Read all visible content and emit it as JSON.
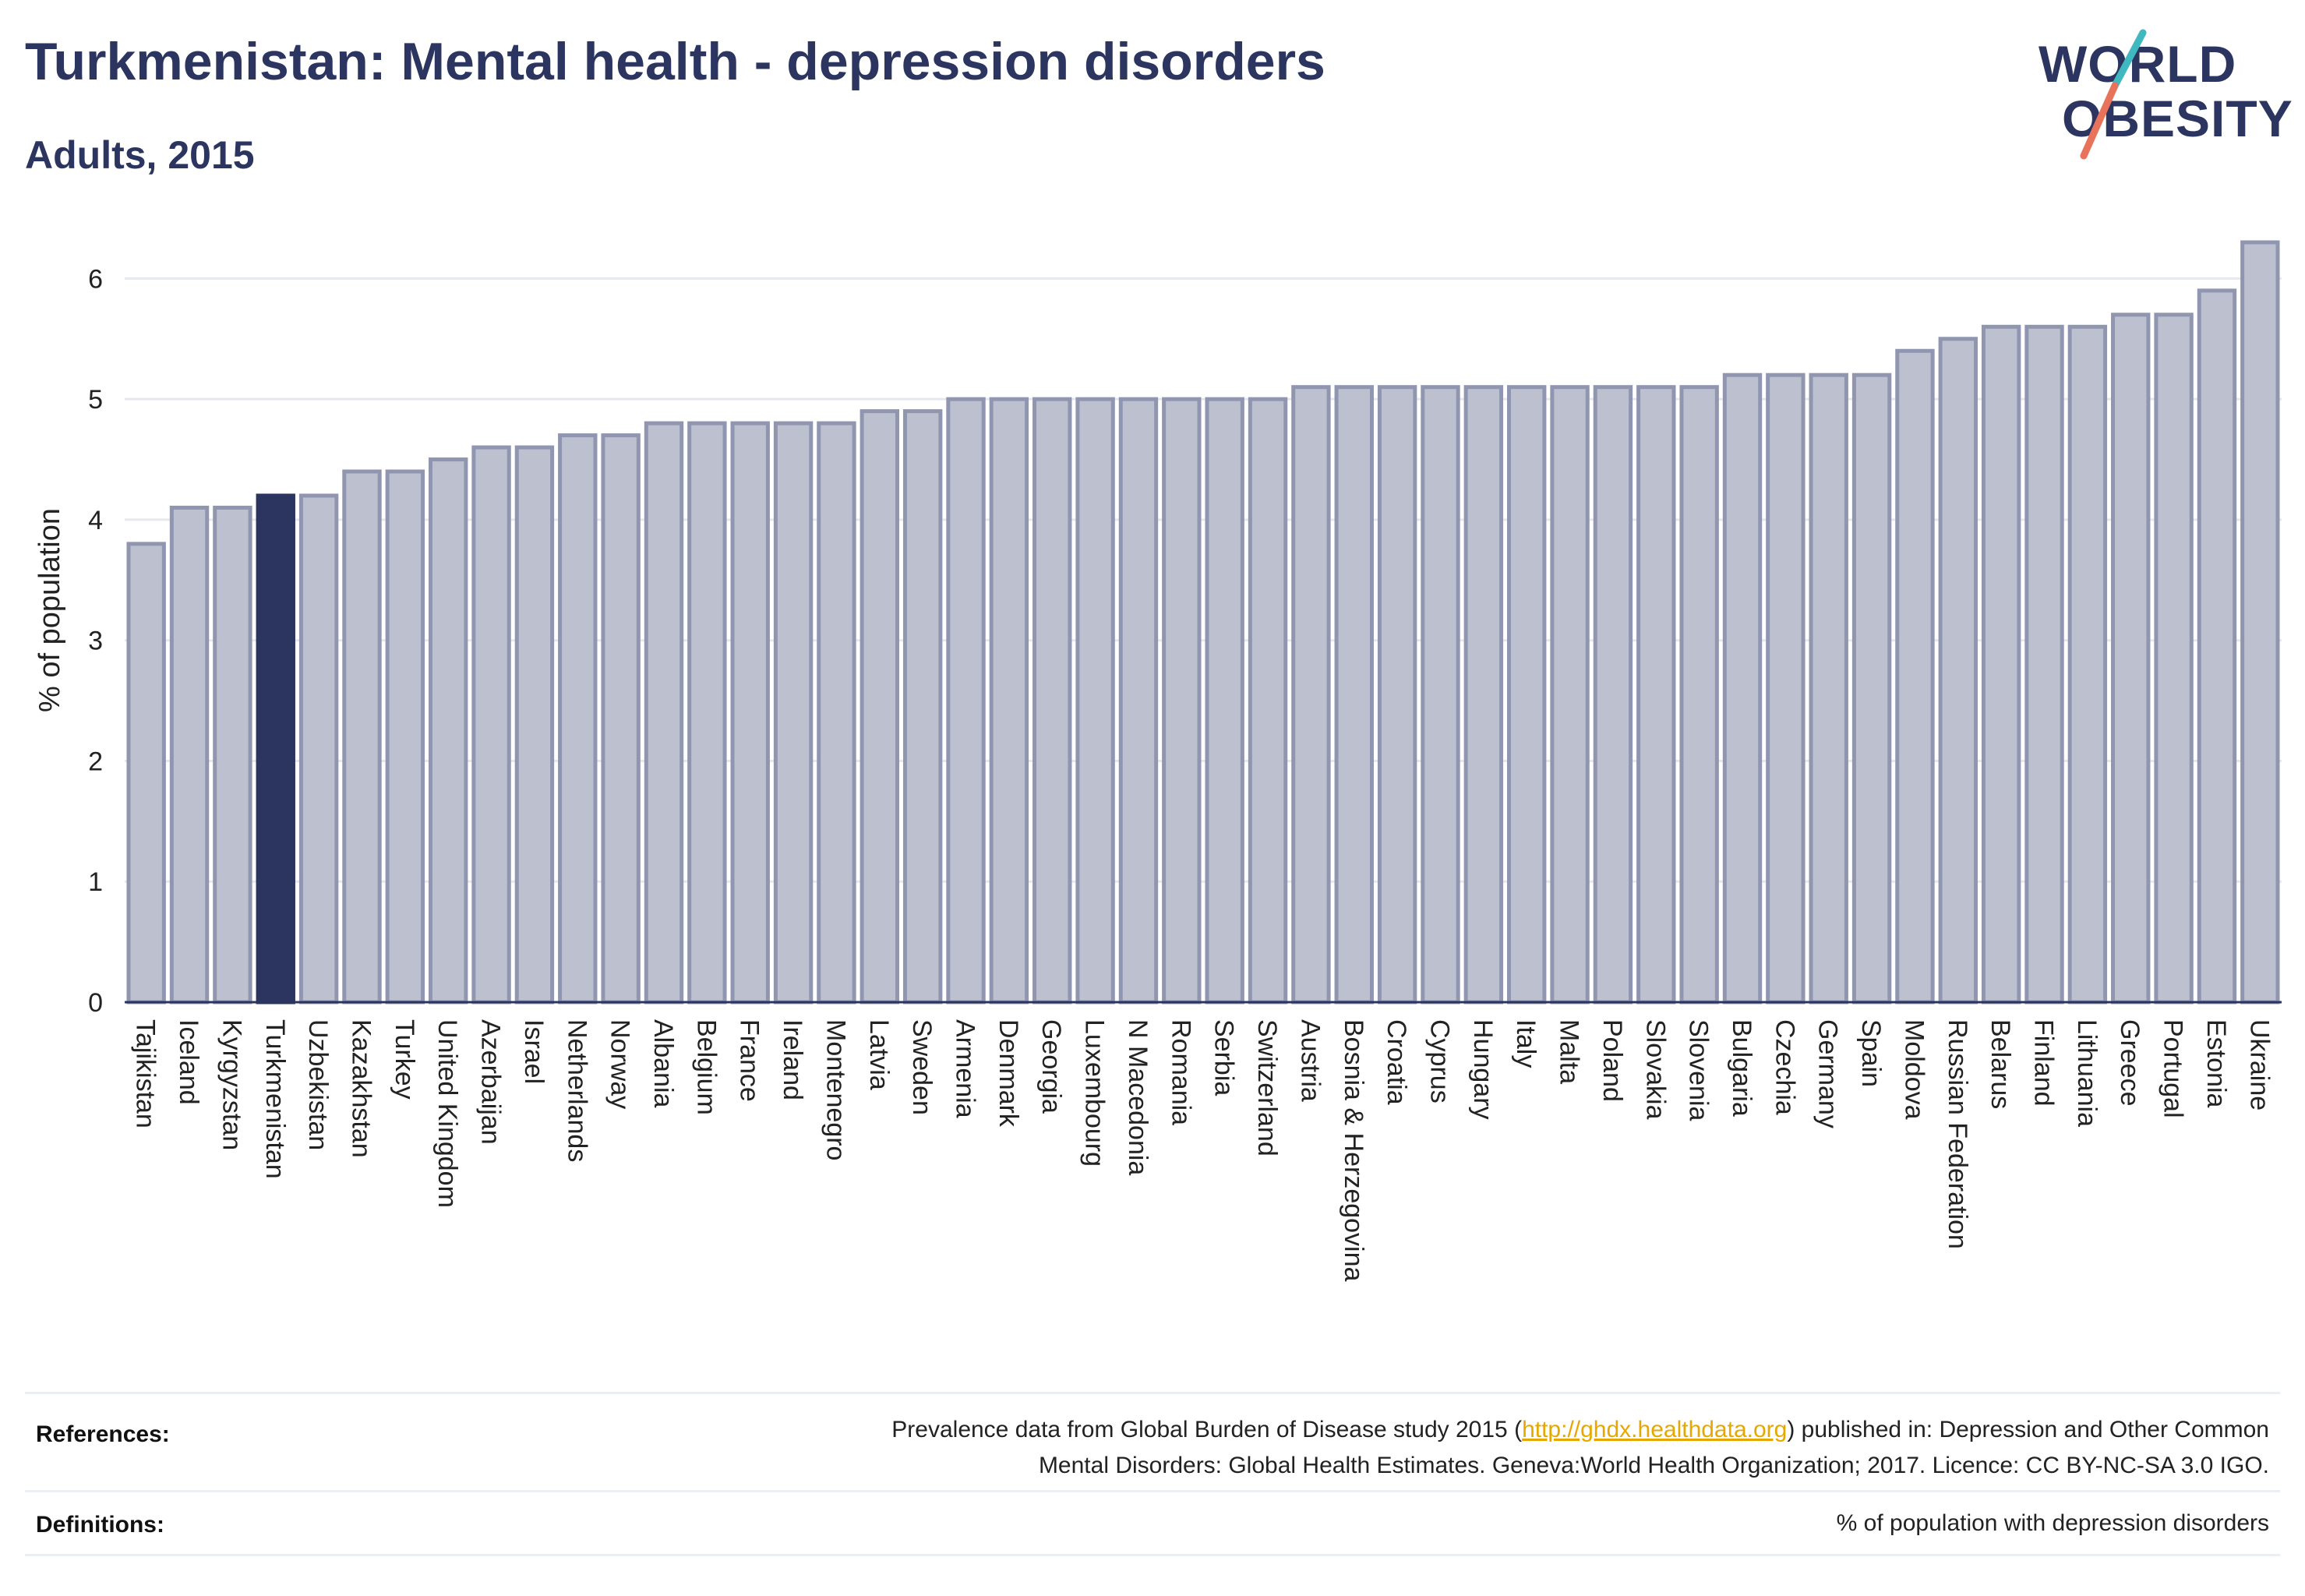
{
  "header": {
    "title": "Turkmenistan: Mental health - depression disorders",
    "subtitle": "Adults, 2015"
  },
  "logo": {
    "line1": "WORLD",
    "line2": "OBESITY",
    "accent_colors": [
      "#3fb8c0",
      "#e8735a"
    ]
  },
  "colors": {
    "highlight_bar": "#2b3560",
    "other_bar": "#bcc0cf",
    "other_bar_border": "#9096b0",
    "text": "#2b3560",
    "link": "#e6a800"
  },
  "chart_data": {
    "type": "bar",
    "title": "Turkmenistan: Mental health - depression disorders",
    "subtitle": "Adults, 2015",
    "xlabel": "",
    "ylabel": "% of population",
    "ylim": [
      0,
      6.5
    ],
    "yticks": [
      0,
      1,
      2,
      3,
      4,
      5,
      6
    ],
    "grid": true,
    "highlight": "Turkmenistan",
    "categories": [
      "Tajikistan",
      "Iceland",
      "Kyrgyzstan",
      "Turkmenistan",
      "Uzbekistan",
      "Kazakhstan",
      "Turkey",
      "United Kingdom",
      "Azerbaijan",
      "Israel",
      "Netherlands",
      "Norway",
      "Albania",
      "Belgium",
      "France",
      "Ireland",
      "Montenegro",
      "Latvia",
      "Sweden",
      "Armenia",
      "Denmark",
      "Georgia",
      "Luxembourg",
      "N Macedonia",
      "Romania",
      "Serbia",
      "Switzerland",
      "Austria",
      "Bosnia & Herzegovina",
      "Croatia",
      "Cyprus",
      "Hungary",
      "Italy",
      "Malta",
      "Poland",
      "Slovakia",
      "Slovenia",
      "Bulgaria",
      "Czechia",
      "Germany",
      "Spain",
      "Moldova",
      "Russian Federation",
      "Belarus",
      "Finland",
      "Lithuania",
      "Greece",
      "Portugal",
      "Estonia",
      "Ukraine"
    ],
    "values": [
      3.8,
      4.1,
      4.1,
      4.2,
      4.2,
      4.4,
      4.4,
      4.5,
      4.6,
      4.6,
      4.7,
      4.7,
      4.8,
      4.8,
      4.8,
      4.8,
      4.8,
      4.9,
      4.9,
      5.0,
      5.0,
      5.0,
      5.0,
      5.0,
      5.0,
      5.0,
      5.0,
      5.1,
      5.1,
      5.1,
      5.1,
      5.1,
      5.1,
      5.1,
      5.1,
      5.1,
      5.1,
      5.2,
      5.2,
      5.2,
      5.2,
      5.4,
      5.5,
      5.6,
      5.6,
      5.6,
      5.7,
      5.7,
      5.9,
      6.3
    ]
  },
  "footer": {
    "references_label": "References:",
    "references_text_1": "Prevalence data from Global Burden of Disease study 2015 (",
    "references_link": "http://ghdx.healthdata.org",
    "references_text_2": ") published in: Depression and Other Common",
    "references_text_3": "Mental Disorders: Global Health Estimates. Geneva:World Health Organization; 2017. Licence: CC BY-NC-SA 3.0 IGO.",
    "definitions_label": "Definitions:",
    "definitions_text": "% of population with depression disorders"
  }
}
